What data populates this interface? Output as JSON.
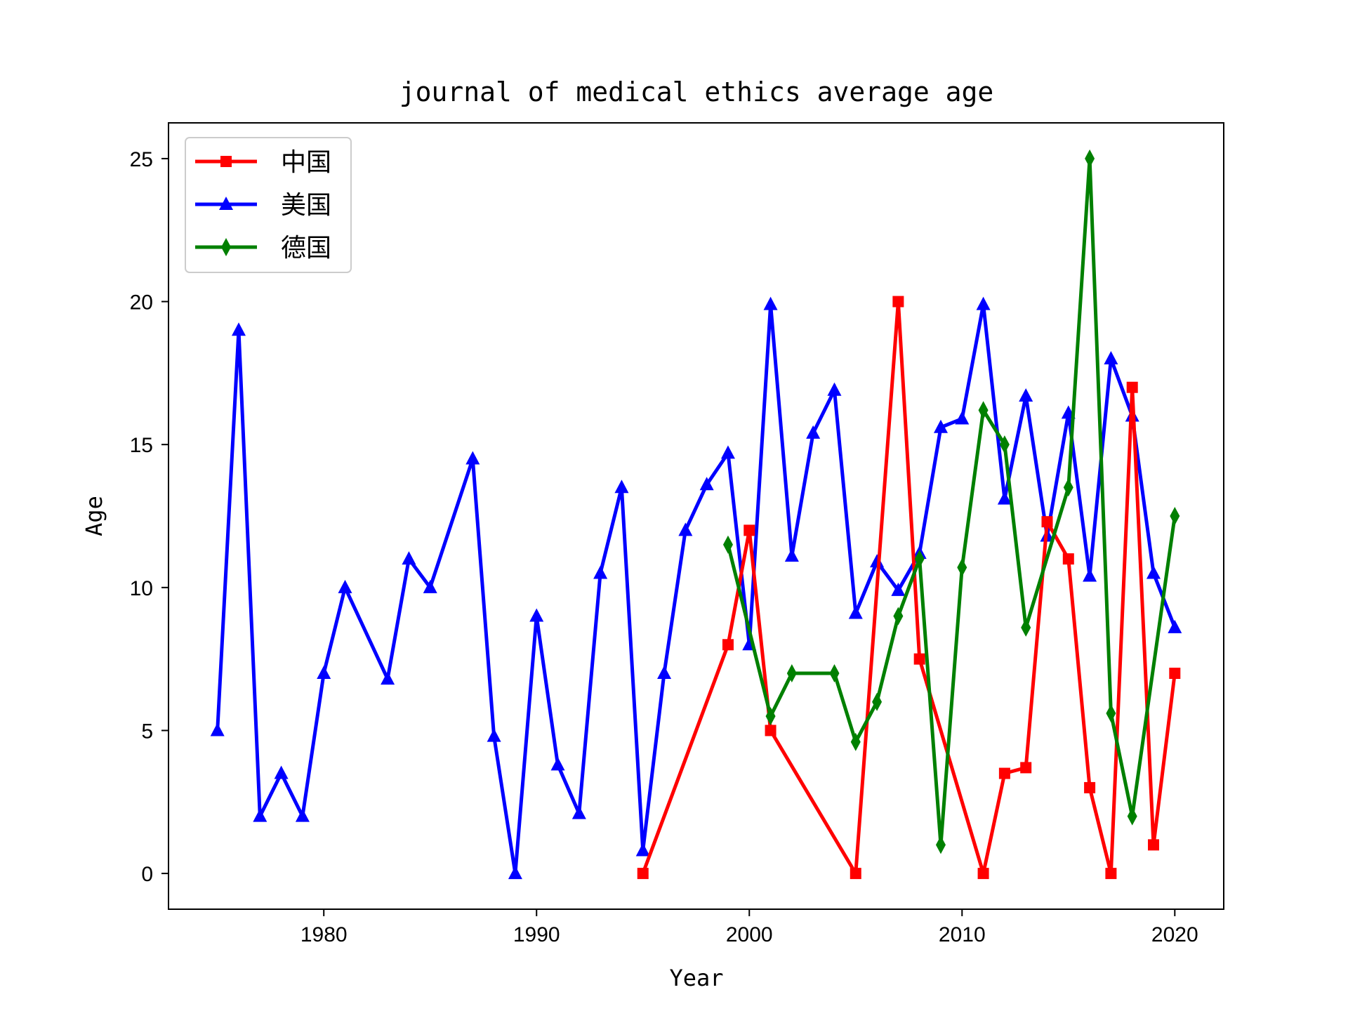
{
  "chart_data": {
    "type": "line",
    "title": "journal of medical ethics average age",
    "xlabel": "Year",
    "ylabel": "Age",
    "xlim": [
      1972.7,
      2022.3
    ],
    "ylim": [
      -1.25,
      26.25
    ],
    "xticks": [
      1980,
      1990,
      2000,
      2010,
      2020
    ],
    "yticks": [
      0,
      5,
      10,
      15,
      20,
      25
    ],
    "grid": false,
    "legend_position": "top-left",
    "series": [
      {
        "name": "中国",
        "color": "#ff0000",
        "marker": "square",
        "x": [
          1995,
          1999,
          2000,
          2001,
          2005,
          2007,
          2008,
          2011,
          2012,
          2013,
          2014,
          2015,
          2016,
          2017,
          2018,
          2019,
          2020
        ],
        "y": [
          0,
          8,
          12,
          5,
          0,
          20,
          7.5,
          0,
          3.5,
          3.7,
          12.3,
          11,
          3,
          0,
          17,
          1,
          7
        ]
      },
      {
        "name": "美国",
        "color": "#0000ff",
        "marker": "triangle",
        "x": [
          1975,
          1976,
          1977,
          1978,
          1979,
          1980,
          1981,
          1983,
          1984,
          1985,
          1987,
          1988,
          1989,
          1990,
          1991,
          1992,
          1993,
          1994,
          1995,
          1996,
          1997,
          1998,
          1999,
          2000,
          2001,
          2002,
          2003,
          2004,
          2005,
          2006,
          2007,
          2008,
          2009,
          2010,
          2011,
          2012,
          2013,
          2014,
          2015,
          2016,
          2017,
          2018,
          2019,
          2020
        ],
        "y": [
          5,
          19,
          2,
          3.5,
          2,
          7,
          10,
          6.8,
          11,
          10,
          14.5,
          4.8,
          0,
          9,
          3.8,
          2.1,
          10.5,
          13.5,
          0.8,
          7,
          12,
          13.6,
          14.7,
          8,
          19.9,
          11.1,
          15.4,
          16.9,
          9.1,
          10.9,
          9.9,
          11.2,
          15.6,
          15.9,
          19.9,
          13.1,
          16.7,
          11.8,
          16.1,
          10.4,
          18,
          16,
          10.5,
          8.6
        ]
      },
      {
        "name": "德国",
        "color": "#008000",
        "marker": "diamond",
        "x": [
          1999,
          2001,
          2002,
          2004,
          2005,
          2006,
          2007,
          2008,
          2009,
          2010,
          2011,
          2012,
          2013,
          2015,
          2016,
          2017,
          2018,
          2020
        ],
        "y": [
          11.5,
          5.5,
          7,
          7,
          4.6,
          6,
          9,
          11,
          1,
          10.7,
          16.2,
          15,
          8.6,
          13.5,
          25,
          5.6,
          2,
          12.5
        ]
      }
    ]
  }
}
